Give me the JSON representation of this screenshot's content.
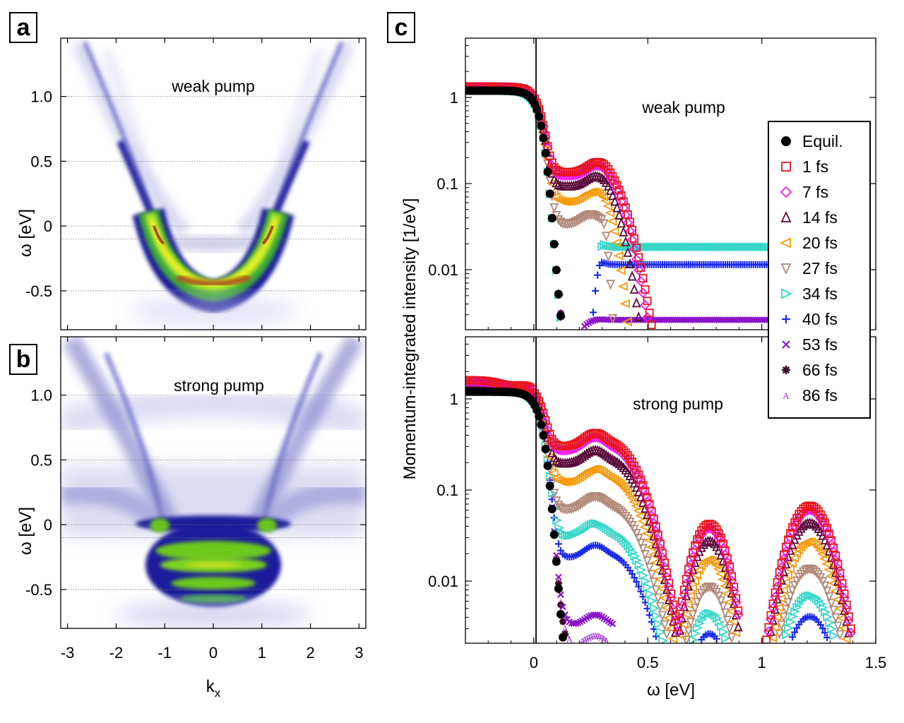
{
  "panel_labels": {
    "a": "a",
    "b": "b",
    "c": "c"
  },
  "chart_data": [
    {
      "id": "panel-a",
      "type": "heatmap",
      "title": "weak pump",
      "xlabel": "k",
      "xlabel_sub": "x",
      "ylabel": "ω [eV]",
      "xlim": [
        -3.14,
        3.14
      ],
      "ylim": [
        -0.8,
        1.45
      ],
      "xticks": [
        "-3",
        "-2",
        "-1",
        "0",
        "1",
        "2",
        "3"
      ],
      "xtick_values": [
        -3,
        -2,
        -1,
        0,
        1,
        2,
        3
      ],
      "yticks": [
        "1.0",
        "0.5",
        "0",
        "-0.5"
      ],
      "ytick_values": [
        1.0,
        0.5,
        0,
        -0.5
      ],
      "dotted_lines_y": [
        1.0,
        0.5,
        0,
        -0.1,
        -0.5
      ]
    },
    {
      "id": "panel-b",
      "type": "heatmap",
      "title": "strong pump",
      "xlabel": "k",
      "xlabel_sub": "x",
      "ylabel": "ω [eV]",
      "xlim": [
        -3.14,
        3.14
      ],
      "ylim": [
        -0.8,
        1.45
      ],
      "xticks": [
        "-3",
        "-2",
        "-1",
        "0",
        "1",
        "2",
        "3"
      ],
      "xtick_values": [
        -3,
        -2,
        -1,
        0,
        1,
        2,
        3
      ],
      "yticks": [
        "1.0",
        "0.5",
        "0",
        "-0.5"
      ],
      "ytick_values": [
        1.0,
        0.5,
        0,
        -0.5
      ],
      "dotted_lines_y": [
        1.0,
        0.5,
        0,
        -0.1,
        -0.5
      ]
    },
    {
      "id": "panel-c",
      "type": "scatter",
      "xlabel": "ω [eV]",
      "ylabel": "Momentum-integrated intensity [1/eV]",
      "xlim": [
        -0.3,
        1.5
      ],
      "xticks": [
        "0",
        "0.5",
        "1",
        "1.5"
      ],
      "xtick_values": [
        0,
        0.5,
        1,
        1.5
      ],
      "yscale": "log",
      "ylim": [
        0.002,
        5
      ],
      "yticks": [
        "1",
        "0.1",
        "0.01"
      ],
      "ytick_values": [
        1,
        0.1,
        0.01
      ],
      "subplots": [
        {
          "annotation": "weak pump",
          "regime": "weak"
        },
        {
          "annotation": "strong pump",
          "regime": "strong"
        }
      ],
      "legend_position": "right",
      "series": [
        {
          "name": "Equil.",
          "marker": "filled-circle",
          "color": "#000000",
          "t": 0
        },
        {
          "name": "1 fs",
          "marker": "square",
          "color": "#e8141c",
          "t": 1
        },
        {
          "name": "7 fs",
          "marker": "diamond",
          "color": "#ee1aee",
          "t": 7
        },
        {
          "name": "14 fs",
          "marker": "triangle-up",
          "color": "#5a0a3a",
          "t": 14
        },
        {
          "name": "20 fs",
          "marker": "triangle-left",
          "color": "#f59a0a",
          "t": 20
        },
        {
          "name": "27 fs",
          "marker": "triangle-down",
          "color": "#b08878",
          "t": 27
        },
        {
          "name": "34 fs",
          "marker": "triangle-right",
          "color": "#38d6c8",
          "t": 34
        },
        {
          "name": "40 fs",
          "marker": "plus",
          "color": "#1a2ae8",
          "t": 40
        },
        {
          "name": "53 fs",
          "marker": "cross",
          "color": "#8a14c8",
          "t": 53
        },
        {
          "name": "66 fs",
          "marker": "star",
          "color": "#3a0a26",
          "t": 66
        },
        {
          "name": "86 fs",
          "marker": "letter-A",
          "color": "#9a30d8",
          "t": 86
        }
      ]
    }
  ],
  "colors": {
    "blue": "#1c1c9c",
    "green": "#6cc81a",
    "yellow": "#f6f024",
    "brown": "#8a3a14",
    "axis": "#000000",
    "grid": "#888888"
  }
}
